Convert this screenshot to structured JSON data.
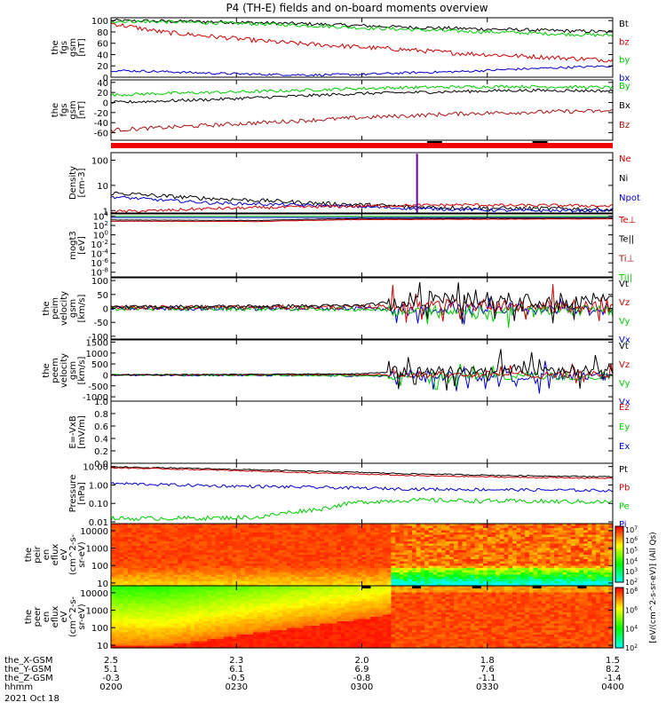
{
  "title": "P4 (TH-E) fields and on-board moments overview",
  "footer": {
    "row_labels": [
      "the_X-GSM",
      "the_Y-GSM",
      "the_Z-GSM",
      "hhmm",
      "2021 Oct 18"
    ],
    "ticks": [
      {
        "vals": [
          "2.5",
          "5.1",
          "-0.3",
          "0200"
        ]
      },
      {
        "vals": [
          "2.3",
          "6.1",
          "-0.5",
          "0230"
        ]
      },
      {
        "vals": [
          "2.0",
          "6.9",
          "-0.8",
          "0300"
        ]
      },
      {
        "vals": [
          "1.8",
          "7.6",
          "-1.1",
          "0330"
        ]
      },
      {
        "vals": [
          "1.5",
          "8.2",
          "-1.4",
          "0400"
        ]
      }
    ]
  },
  "colorbar": {
    "label": "[eV/(cm^2-s-sr-eV)] (All Qs)",
    "top": {
      "ticks": [
        "10^7",
        "10^6",
        "10^5",
        "10^4",
        "10^3",
        "10^2"
      ]
    },
    "bottom": {
      "ticks": [
        "10^8",
        "10^6",
        "10^4",
        "10^2"
      ]
    }
  },
  "colors": {
    "black": "#000000",
    "red": "#cc0000",
    "green": "#00cc00",
    "blue": "#0000cc",
    "darkred": "#aa1111",
    "bar_red": "#ee0000"
  },
  "chart_data": [
    {
      "id": "fgs_total",
      "type": "line",
      "ylabel_lines": [
        "the",
        "fgs",
        "gsm",
        "[nT]"
      ],
      "ylim": [
        0,
        105
      ],
      "yticks": [
        {
          "v": 0,
          "label": "0"
        },
        {
          "v": 20,
          "label": "20"
        },
        {
          "v": 40,
          "label": "40"
        },
        {
          "v": 60,
          "label": "60"
        },
        {
          "v": 80,
          "label": "80"
        },
        {
          "v": 100,
          "label": "100"
        }
      ],
      "legend": [
        {
          "text": "Bt",
          "color": "#000000"
        },
        {
          "text": "bz",
          "color": "#cc0000"
        },
        {
          "text": "by",
          "color": "#00cc00"
        },
        {
          "text": "bx",
          "color": "#0000cc"
        }
      ],
      "series": [
        {
          "color": "#000000",
          "x": [
            0,
            0.1,
            0.2,
            0.3,
            0.4,
            0.5,
            0.6,
            0.7,
            0.8,
            0.9,
            1
          ],
          "y": [
            100,
            99,
            98,
            96,
            94,
            91,
            88,
            86,
            84,
            82,
            80
          ],
          "noise": 3
        },
        {
          "color": "#00cc00",
          "x": [
            0,
            0.1,
            0.2,
            0.3,
            0.4,
            0.5,
            0.6,
            0.7,
            0.8,
            0.9,
            1
          ],
          "y": [
            99,
            98,
            96,
            94,
            91,
            87,
            84,
            81,
            79,
            76,
            74
          ],
          "noise": 3
        },
        {
          "color": "#cc0000",
          "x": [
            0,
            0.1,
            0.2,
            0.3,
            0.4,
            0.5,
            0.6,
            0.7,
            0.8,
            0.9,
            1
          ],
          "y": [
            95,
            80,
            72,
            64,
            58,
            53,
            48,
            42,
            38,
            34,
            30
          ],
          "noise": 4
        },
        {
          "color": "#0000cc",
          "x": [
            0,
            0.1,
            0.2,
            0.3,
            0.4,
            0.5,
            0.6,
            0.7,
            0.8,
            0.9,
            1
          ],
          "y": [
            12,
            10,
            7,
            5,
            4,
            5,
            8,
            10,
            14,
            17,
            20
          ],
          "noise": 2
        }
      ]
    },
    {
      "id": "fgs_comp",
      "type": "line",
      "ylabel_lines": [
        "the",
        "fgs",
        "gsm",
        "[nT]"
      ],
      "ylim": [
        -75,
        45
      ],
      "yticks": [
        {
          "v": -60,
          "label": "-60"
        },
        {
          "v": -40,
          "label": "-40"
        },
        {
          "v": -20,
          "label": "-20"
        },
        {
          "v": 0,
          "label": "0"
        },
        {
          "v": 20,
          "label": "20"
        },
        {
          "v": 40,
          "label": "40"
        }
      ],
      "legend": [
        {
          "text": "By",
          "color": "#00cc00"
        },
        {
          "text": "Bx",
          "color": "#000000"
        },
        {
          "text": "Bz",
          "color": "#aa1111"
        }
      ],
      "series": [
        {
          "color": "#00cc00",
          "x": [
            0,
            0.1,
            0.2,
            0.3,
            0.4,
            0.5,
            0.6,
            0.7,
            0.8,
            0.9,
            1
          ],
          "y": [
            15,
            18,
            20,
            22,
            25,
            28,
            30,
            31,
            32,
            31,
            30
          ],
          "noise": 3
        },
        {
          "color": "#000000",
          "x": [
            0,
            0.1,
            0.2,
            0.3,
            0.4,
            0.5,
            0.6,
            0.7,
            0.8,
            0.9,
            1
          ],
          "y": [
            0,
            3,
            6,
            10,
            14,
            18,
            20,
            22,
            24,
            24,
            23
          ],
          "noise": 3
        },
        {
          "color": "#aa1111",
          "x": [
            0,
            0.1,
            0.2,
            0.3,
            0.4,
            0.5,
            0.6,
            0.7,
            0.8,
            0.9,
            1
          ],
          "y": [
            -55,
            -50,
            -45,
            -40,
            -35,
            -30,
            -26,
            -22,
            -20,
            -18,
            -17
          ],
          "noise": 4
        }
      ]
    },
    {
      "id": "density",
      "type": "line",
      "yscale": "log",
      "ylabel_lines": [
        "Density",
        "[cm-3]"
      ],
      "ylim": [
        0.8,
        200
      ],
      "yticks": [
        {
          "v": 1,
          "label": "1"
        },
        {
          "v": 10,
          "label": "10"
        },
        {
          "v": 100,
          "label": "100"
        }
      ],
      "legend": [
        {
          "text": "Ne",
          "color": "#cc0000"
        },
        {
          "text": "Ni",
          "color": "#000000"
        },
        {
          "text": "Npot",
          "color": "#0000cc"
        }
      ],
      "series": [
        {
          "color": "#000000",
          "x": [
            0,
            0.1,
            0.2,
            0.3,
            0.4,
            0.5,
            0.6,
            0.7,
            0.8,
            0.9,
            1
          ],
          "y": [
            5,
            3.8,
            3,
            2.5,
            2,
            1.7,
            1.4,
            1.3,
            1.2,
            1.2,
            1.1
          ],
          "noise": 0.08
        },
        {
          "color": "#0000cc",
          "x": [
            0,
            0.1,
            0.2,
            0.3,
            0.4,
            0.5,
            0.6,
            0.7,
            0.8,
            0.9,
            1
          ],
          "y": [
            3.5,
            2.6,
            2,
            1.8,
            1.6,
            1.4,
            1.2,
            1.1,
            1,
            1,
            1
          ],
          "noise": 0.06
        },
        {
          "color": "#cc0000",
          "x": [
            0,
            0.1,
            0.2,
            0.3,
            0.4,
            0.5,
            0.6,
            0.7,
            0.8,
            0.9,
            1
          ],
          "y": [
            0.9,
            1,
            1.2,
            1.3,
            1.4,
            1.5,
            1.6,
            1.7,
            1.6,
            1.6,
            1.5
          ],
          "noise": 0.06
        }
      ],
      "spike": {
        "x": 0.61,
        "y": 180
      }
    },
    {
      "id": "temperature",
      "type": "line",
      "yscale": "log",
      "ylabel_lines": [
        "mogt3",
        "[eV]"
      ],
      "ylim": [
        1e-09,
        30000
      ],
      "yticks": [
        {
          "v": 10000,
          "label": "10^4"
        },
        {
          "v": 100,
          "label": "10^2"
        },
        {
          "v": 1,
          "label": "10^0"
        },
        {
          "v": 0.01,
          "label": "10^-2"
        },
        {
          "v": 0.0001,
          "label": "10^-4"
        },
        {
          "v": 1e-06,
          "label": "10^-6"
        },
        {
          "v": 1e-08,
          "label": "10^-8"
        }
      ],
      "legend": [
        {
          "text": "Te⊥",
          "color": "#cc0000"
        },
        {
          "text": "Te||",
          "color": "#000000"
        },
        {
          "text": "Ti⊥",
          "color": "#aa1111"
        },
        {
          "text": "Ti||",
          "color": "#00cc00"
        }
      ],
      "series": [
        {
          "color": "#00cc00",
          "x": [
            0,
            1
          ],
          "y": [
            9000,
            9000
          ],
          "noise": 0
        },
        {
          "color": "#0000cc",
          "x": [
            0,
            1
          ],
          "y": [
            5000,
            5000
          ],
          "noise": 0
        },
        {
          "color": "#000000",
          "x": [
            0,
            0.3,
            0.5,
            1
          ],
          "y": [
            1500,
            1200,
            3000,
            4000
          ],
          "noise": 0.04
        },
        {
          "color": "#cc0000",
          "x": [
            0,
            0.3,
            0.5,
            1
          ],
          "y": [
            800,
            700,
            1800,
            2500
          ],
          "noise": 0.04
        }
      ]
    },
    {
      "id": "peim_vel",
      "type": "line",
      "ylabel_lines": [
        "the",
        "peim",
        "velocity",
        "gsm",
        "[km/s]"
      ],
      "ylim": [
        -110,
        110
      ],
      "yticks": [
        {
          "v": -100,
          "label": "-100"
        },
        {
          "v": -50,
          "label": "-50"
        },
        {
          "v": 0,
          "label": "0"
        },
        {
          "v": 50,
          "label": "50"
        },
        {
          "v": 100,
          "label": "100"
        }
      ],
      "legend": [
        {
          "text": "Vt",
          "color": "#000000"
        },
        {
          "text": "Vz",
          "color": "#cc0000"
        },
        {
          "text": "Vy",
          "color": "#00cc00"
        },
        {
          "text": "Vx",
          "color": "#0000cc"
        }
      ],
      "series": [
        {
          "color": "#0000cc",
          "x": [
            0,
            0.5,
            0.6,
            1
          ],
          "y": [
            0,
            0,
            -5,
            -5
          ],
          "noise": 8,
          "burst": 25
        },
        {
          "color": "#00cc00",
          "x": [
            0,
            0.5,
            0.6,
            1
          ],
          "y": [
            0,
            -2,
            -10,
            -8
          ],
          "noise": 8,
          "burst": 30
        },
        {
          "color": "#cc0000",
          "x": [
            0,
            0.5,
            0.6,
            1
          ],
          "y": [
            3,
            5,
            10,
            8
          ],
          "noise": 8,
          "burst": 35
        },
        {
          "color": "#000000",
          "x": [
            0,
            0.5,
            0.6,
            1
          ],
          "y": [
            5,
            10,
            30,
            30
          ],
          "noise": 6,
          "burst": 40
        }
      ]
    },
    {
      "id": "peem_vel",
      "type": "line",
      "ylabel_lines": [
        "the",
        "peem",
        "velocity",
        "gsm",
        "[km/s]"
      ],
      "ylim": [
        -1200,
        1600
      ],
      "yticks": [
        {
          "v": -1000,
          "label": "-1000"
        },
        {
          "v": -500,
          "label": "-500"
        },
        {
          "v": 0,
          "label": "0"
        },
        {
          "v": 500,
          "label": "500"
        },
        {
          "v": 1000,
          "label": "1000"
        },
        {
          "v": 1500,
          "label": "1500"
        }
      ],
      "legend": [
        {
          "text": "Vt",
          "color": "#000000"
        },
        {
          "text": "Vz",
          "color": "#cc0000"
        },
        {
          "text": "Vy",
          "color": "#00cc00"
        },
        {
          "text": "Vx",
          "color": "#0000cc"
        }
      ],
      "series": [
        {
          "color": "#0000cc",
          "x": [
            0,
            0.6,
            1
          ],
          "y": [
            0,
            -50,
            -80
          ],
          "noise": 40,
          "burst": 350
        },
        {
          "color": "#00cc00",
          "x": [
            0,
            0.6,
            1
          ],
          "y": [
            0,
            -40,
            -60
          ],
          "noise": 30,
          "burst": 300
        },
        {
          "color": "#cc0000",
          "x": [
            0,
            0.6,
            1
          ],
          "y": [
            0,
            20,
            30
          ],
          "noise": 30,
          "burst": 250
        },
        {
          "color": "#000000",
          "x": [
            0,
            0.5,
            0.6,
            1
          ],
          "y": [
            0,
            50,
            200,
            250
          ],
          "noise": 20,
          "burst": 450
        }
      ]
    },
    {
      "id": "efield",
      "type": "line",
      "ylabel_lines": [
        "E=-VxB",
        "[mV/m]"
      ],
      "ylim": [
        0,
        1
      ],
      "yticks": [
        {
          "v": 0,
          "label": "0.0"
        },
        {
          "v": 0.2,
          "label": "0.2"
        },
        {
          "v": 0.4,
          "label": "0.4"
        },
        {
          "v": 0.6,
          "label": "0.6"
        },
        {
          "v": 0.8,
          "label": "0.8"
        },
        {
          "v": 1,
          "label": "1.0"
        }
      ],
      "legend": [
        {
          "text": "Ez",
          "color": "#cc0000"
        },
        {
          "text": "Ey",
          "color": "#00cc00"
        },
        {
          "text": "Ex",
          "color": "#0000cc"
        }
      ],
      "series": []
    },
    {
      "id": "pressure",
      "type": "line",
      "yscale": "log",
      "ylabel_lines": [
        "Pressure",
        "[nPa]"
      ],
      "ylim": [
        0.008,
        15
      ],
      "yticks": [
        {
          "v": 0.01,
          "label": "0.01"
        },
        {
          "v": 0.1,
          "label": "0.10"
        },
        {
          "v": 1,
          "label": "1.00"
        },
        {
          "v": 10,
          "label": "10.00"
        }
      ],
      "legend": [
        {
          "text": "Pt",
          "color": "#000000"
        },
        {
          "text": "Pb",
          "color": "#cc0000"
        },
        {
          "text": "Pe",
          "color": "#00cc00"
        },
        {
          "text": "Pi",
          "color": "#0000cc"
        }
      ],
      "series": [
        {
          "color": "#000000",
          "x": [
            0,
            0.2,
            0.4,
            0.6,
            0.8,
            1
          ],
          "y": [
            9.5,
            7.5,
            5.5,
            4,
            3.2,
            2.8
          ],
          "noise": 0.03
        },
        {
          "color": "#cc0000",
          "x": [
            0,
            0.2,
            0.4,
            0.6,
            0.8,
            1
          ],
          "y": [
            8.5,
            6.5,
            4.5,
            3.2,
            2.6,
            2.3
          ],
          "noise": 0.03
        },
        {
          "color": "#0000cc",
          "x": [
            0,
            0.2,
            0.4,
            0.6,
            0.8,
            1
          ],
          "y": [
            1.2,
            0.9,
            0.75,
            0.6,
            0.55,
            0.5
          ],
          "noise": 0.08
        },
        {
          "color": "#00cc00",
          "x": [
            0,
            0.2,
            0.3,
            0.42,
            0.5,
            0.6,
            0.8,
            1
          ],
          "y": [
            0.015,
            0.016,
            0.018,
            0.05,
            0.12,
            0.15,
            0.13,
            0.12
          ],
          "noise": 0.12
        }
      ]
    },
    {
      "id": "peir_spec",
      "type": "heatmap",
      "ylabel_lines": [
        "the",
        "peir",
        "en",
        "eflux",
        "eV",
        "(cm^2-s-",
        "sr-eV)"
      ],
      "yticks": [
        {
          "v": 10,
          "label": "10"
        },
        {
          "v": 100,
          "label": "100"
        },
        {
          "v": 1000,
          "label": "1000"
        },
        {
          "v": 10000,
          "label": "10000"
        }
      ],
      "ylim": [
        7,
        25000
      ]
    },
    {
      "id": "peer_spec",
      "type": "heatmap",
      "ylabel_lines": [
        "the",
        "peer",
        "en",
        "eflux",
        "eV",
        "(cm^2-s-",
        "sr-eV)"
      ],
      "yticks": [
        {
          "v": 10,
          "label": "10"
        },
        {
          "v": 100,
          "label": "100"
        },
        {
          "v": 1000,
          "label": "1000"
        },
        {
          "v": 10000,
          "label": "10000"
        }
      ],
      "ylim": [
        7,
        25000
      ]
    }
  ]
}
